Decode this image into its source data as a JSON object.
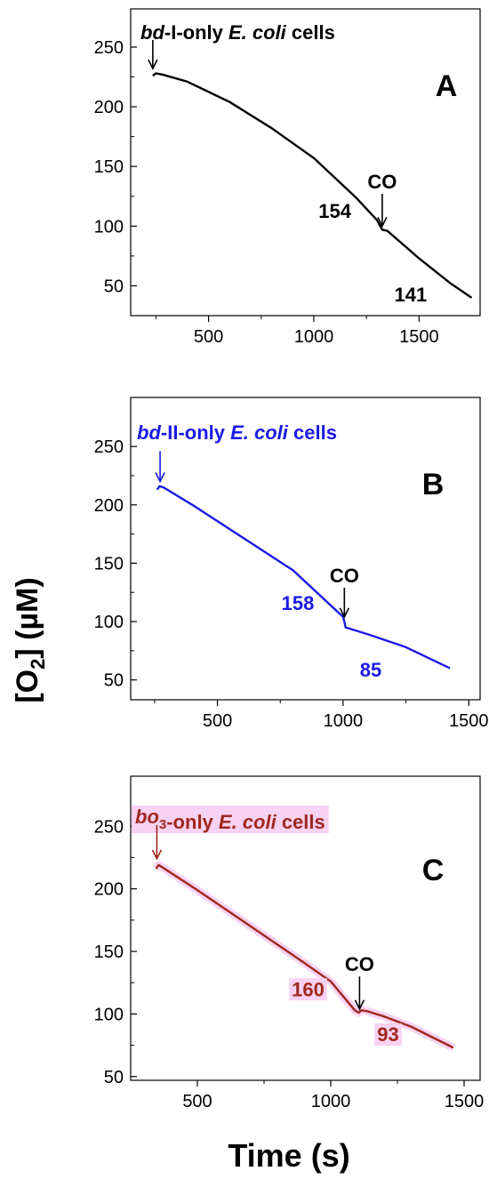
{
  "y_axis_label": {
    "main": "[O",
    "sub": "2",
    "rest": "] (µM)"
  },
  "x_axis_label": "Time (s)",
  "colors": {
    "A": "#000000",
    "B": "#1a1ae6",
    "C": "#a0281e",
    "C_highlight": "#f7d2f2"
  },
  "chart_data": [
    {
      "type": "line",
      "panel": "A",
      "title_parts": [
        {
          "text": "bd",
          "italic": true
        },
        {
          "text": "-I-only ",
          "italic": false
        },
        {
          "text": "E. coli",
          "italic": true
        },
        {
          "text": " cells",
          "italic": false
        }
      ],
      "xlim": [
        130,
        1790
      ],
      "ylim": [
        25,
        282
      ],
      "xticks": [
        500,
        1000,
        1500
      ],
      "yticks": [
        50,
        100,
        150,
        200,
        250
      ],
      "series": [
        {
          "x": [
            235,
            250,
            280,
            400,
            600,
            800,
            1000,
            1200,
            1300,
            1325,
            1350,
            1500,
            1650,
            1750
          ],
          "y": [
            226,
            228,
            227,
            221,
            204,
            182,
            157,
            124,
            105,
            97,
            96,
            73,
            52,
            40
          ]
        }
      ],
      "start_arrow": {
        "x": 235,
        "y_top": 256,
        "y_tip": 232
      },
      "co_arrow": {
        "label": "CO",
        "x": 1325,
        "y_top": 127,
        "y_tip": 100
      },
      "rates": [
        {
          "text": "154",
          "x": 1100,
          "y": 113
        },
        {
          "text": "141",
          "x": 1460,
          "y": 43
        }
      ]
    },
    {
      "type": "line",
      "panel": "B",
      "title_parts": [
        {
          "text": "bd",
          "italic": true
        },
        {
          "text": "-II-only ",
          "italic": false
        },
        {
          "text": "E. coli",
          "italic": true
        },
        {
          "text": " cells",
          "italic": false
        }
      ],
      "xlim": [
        155,
        1545
      ],
      "ylim": [
        33,
        292
      ],
      "xticks": [
        500,
        1000,
        1500
      ],
      "yticks": [
        50,
        100,
        150,
        200,
        250
      ],
      "series": [
        {
          "x": [
            260,
            270,
            285,
            400,
            600,
            800,
            1000,
            1005,
            1010,
            1100,
            1250,
            1425
          ],
          "y": [
            213,
            216,
            215,
            200,
            172,
            144,
            104,
            100,
            95,
            89,
            78,
            60
          ]
        }
      ],
      "start_arrow": {
        "x": 272,
        "y_top": 246,
        "y_tip": 220
      },
      "co_arrow": {
        "label": "CO",
        "x": 1005,
        "y_top": 129,
        "y_tip": 104
      },
      "rates": [
        {
          "text": "158",
          "x": 820,
          "y": 116
        },
        {
          "text": "85",
          "x": 1110,
          "y": 59
        }
      ]
    },
    {
      "type": "line",
      "panel": "C",
      "title_parts": [
        {
          "text": "bo",
          "italic": true,
          "sub": "3"
        },
        {
          "text": "-only ",
          "italic": false
        },
        {
          "text": "E. coli",
          "italic": true
        },
        {
          "text": " cells",
          "italic": false
        }
      ],
      "xlim": [
        250,
        1560
      ],
      "ylim": [
        47,
        290
      ],
      "xticks": [
        500,
        1000,
        1500
      ],
      "yticks": [
        50,
        100,
        150,
        200,
        250
      ],
      "series": [
        {
          "x": [
            345,
            355,
            370,
            500,
            700,
            900,
            1000,
            1090,
            1105,
            1115,
            1140,
            1200,
            1300,
            1460
          ],
          "y": [
            216,
            219,
            217,
            199,
            170,
            141,
            126,
            103,
            101,
            103,
            102,
            98,
            90,
            73
          ]
        }
      ],
      "start_arrow": {
        "x": 348,
        "y_top": 251,
        "y_tip": 224
      },
      "co_arrow": {
        "label": "CO",
        "x": 1108,
        "y_top": 130,
        "y_tip": 104
      },
      "rates": [
        {
          "text": "160",
          "x": 915,
          "y": 120
        },
        {
          "text": "93",
          "x": 1215,
          "y": 84
        }
      ]
    }
  ]
}
